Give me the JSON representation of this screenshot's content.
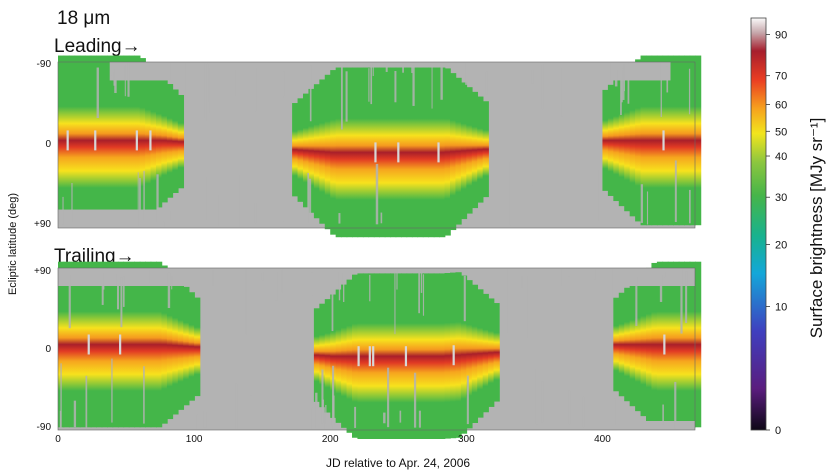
{
  "chart_data": {
    "type": "heatmap",
    "wavelength_label": "18 μm",
    "panels": [
      {
        "name": "leading",
        "label": "Leading→",
        "y_top_label": "-90",
        "y_mid_label": "0",
        "y_bottom_label": "+90",
        "band_center_x": [
          0,
          75,
          200,
          280,
          400,
          468
        ],
        "band_center_lat": [
          -5,
          -5,
          8,
          8,
          -5,
          -5
        ],
        "gap_center_x": [
          130,
          355
        ],
        "empty_boxes": [
          {
            "x": [
              38,
              83
            ],
            "lat": [
              -90,
              -70
            ]
          },
          {
            "x": [
              406,
              450
            ],
            "lat": [
              -90,
              -70
            ]
          }
        ],
        "bottom_empty": {
          "x": [
            0,
            112
          ],
          "lat": [
            70,
            90
          ]
        }
      },
      {
        "name": "trailing",
        "label": "Trailing→",
        "y_top_label": "+90",
        "y_mid_label": "0",
        "y_bottom_label": "-90",
        "band_center_x": [
          0,
          75,
          200,
          280,
          400,
          468
        ],
        "band_center_lat": [
          5,
          5,
          -8,
          -8,
          5,
          5
        ],
        "gap_center_x": [
          145,
          365
        ],
        "empty_boxes": [
          {
            "x": [
              0,
              112
            ],
            "lat": [
              70,
              90
            ]
          },
          {
            "x": [
              370,
              468
            ],
            "lat": [
              70,
              90
            ]
          }
        ],
        "bottom_empty": {
          "x": [
            420,
            468
          ],
          "lat": [
            -90,
            -80
          ]
        }
      }
    ],
    "x_ticks": [
      "0",
      "100",
      "200",
      "300",
      "400"
    ],
    "x_tick_values": [
      0,
      100,
      200,
      300,
      400
    ],
    "xlim": [
      0,
      468
    ],
    "xlabel": "JD relative to Apr. 24, 2006",
    "ylabel": "Ecliptic latitude (deg)",
    "colorbar": {
      "label": "Surface brightness [MJy sr⁻¹]",
      "ticks": [
        "0",
        "10",
        "20",
        "30",
        "40",
        "50",
        "60",
        "70",
        "90"
      ],
      "tick_values": [
        0,
        10,
        20,
        30,
        40,
        50,
        60,
        70,
        90
      ],
      "scale": "nonlinear"
    },
    "colors": {
      "nodata": "#b3b3b3",
      "low": "#44b649",
      "mid": "#f7e21d",
      "high": "#e02020",
      "peak": "#a91f2a"
    }
  }
}
